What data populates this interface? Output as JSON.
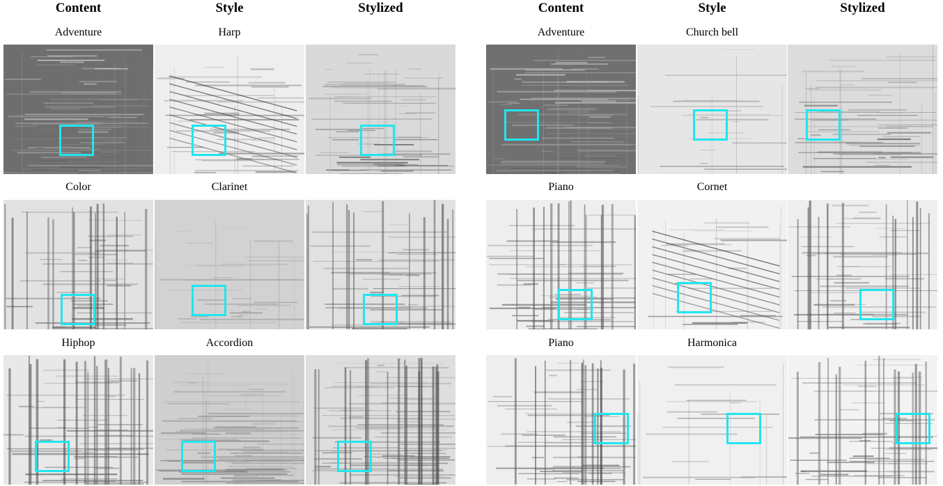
{
  "headers": {
    "left": {
      "content": "Content",
      "style": "Style",
      "stylized": "Stylized"
    },
    "right": {
      "content": "Content",
      "style": "Style",
      "stylized": "Stylized"
    }
  },
  "groups": [
    {
      "content_label": "Adventure",
      "style_label": "Harp"
    },
    {
      "content_label": "Color",
      "style_label": "Clarinet"
    },
    {
      "content_label": "Hiphop",
      "style_label": "Accordion"
    },
    {
      "content_label": "Adventure",
      "style_label": "Church bell"
    },
    {
      "content_label": "Piano",
      "style_label": "Cornet"
    },
    {
      "content_label": "Piano",
      "style_label": "Harmonica"
    }
  ],
  "colors": {
    "highlight": "#1fe6ef"
  }
}
